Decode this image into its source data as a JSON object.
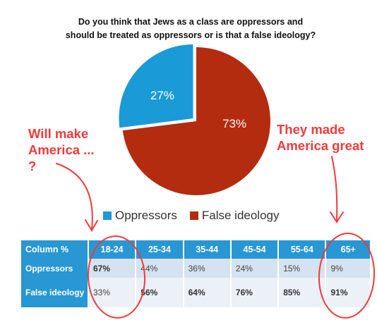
{
  "chart_data": {
    "type": "pie",
    "title": "Do you think that Jews as a class are oppressors and should be treated as oppressors or is that a false ideology?",
    "categories": [
      "Oppressors",
      "False ideology"
    ],
    "values": [
      27,
      73
    ],
    "labels": [
      "27%",
      "73%"
    ],
    "colors": [
      "#1b9ad8",
      "#b32c10"
    ],
    "legend_position": "bottom"
  },
  "table": {
    "header": [
      "Column %",
      "18-24",
      "25-34",
      "35-44",
      "45-54",
      "55-64",
      "65+"
    ],
    "rows": [
      {
        "label": "Oppressors",
        "cells": [
          "67%",
          "44%",
          "36%",
          "24%",
          "15%",
          "9%"
        ]
      },
      {
        "label": "False ideology",
        "cells": [
          "33%",
          "56%",
          "64%",
          "76%",
          "85%",
          "91%"
        ]
      }
    ]
  },
  "annotations": {
    "left": "Will make America ... ?",
    "right": "They made America great",
    "color": "#f23a3a"
  }
}
